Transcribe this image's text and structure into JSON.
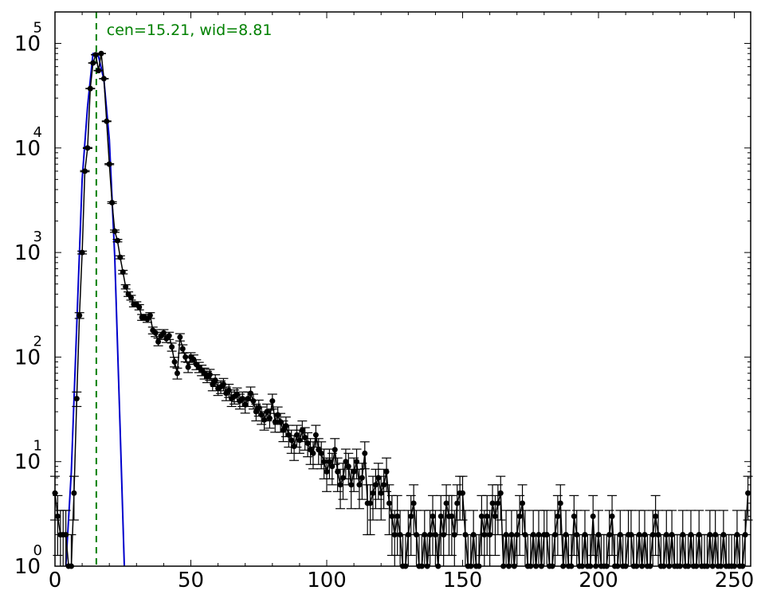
{
  "chart_data": {
    "type": "scatter",
    "title": "",
    "xlabel": "",
    "ylabel": "",
    "xlim": [
      0,
      256
    ],
    "ylim": [
      1,
      200000
    ],
    "yscale": "log",
    "grid": false,
    "x_ticks": [
      0,
      50,
      100,
      150,
      200,
      250
    ],
    "x_tick_labels": [
      "0",
      "50",
      "100",
      "150",
      "200",
      "250"
    ],
    "y_ticks": [
      1,
      10,
      100,
      1000,
      10000,
      100000
    ],
    "y_tick_base": [
      "10",
      "10",
      "10",
      "10",
      "10",
      "10"
    ],
    "y_tick_exponents": [
      "0",
      "1",
      "2",
      "3",
      "4",
      "5"
    ],
    "annotation": {
      "text": "cen=15.21, wid=8.81",
      "x": 19,
      "color": "#008000"
    },
    "center_line": {
      "x": 15.21,
      "color": "#008000",
      "style": "dashed"
    },
    "series": [
      {
        "kind": "errorbar-points",
        "color": "#000000",
        "points": [
          [
            0,
            5
          ],
          [
            1,
            3
          ],
          [
            2,
            2
          ],
          [
            3,
            2
          ],
          [
            4,
            2
          ],
          [
            5,
            0
          ],
          [
            6,
            1
          ],
          [
            7,
            5
          ],
          [
            8,
            40
          ],
          [
            9,
            250
          ],
          [
            10,
            1000
          ],
          [
            11,
            6000
          ],
          [
            12,
            10000
          ],
          [
            13,
            37000
          ],
          [
            14,
            65000
          ],
          [
            15,
            78000
          ],
          [
            16,
            55000
          ],
          [
            17,
            80000
          ],
          [
            18,
            46000
          ],
          [
            19,
            18000
          ],
          [
            20,
            7000
          ],
          [
            21,
            3000
          ],
          [
            22,
            1600
          ],
          [
            23,
            1300
          ],
          [
            24,
            900
          ],
          [
            25,
            650
          ],
          [
            26,
            470
          ],
          [
            27,
            400
          ],
          [
            28,
            370
          ],
          [
            29,
            320
          ],
          [
            30,
            320
          ],
          [
            31,
            300
          ],
          [
            32,
            240
          ],
          [
            33,
            240
          ],
          [
            34,
            230
          ],
          [
            35,
            250
          ],
          [
            36,
            180
          ],
          [
            37,
            170
          ],
          [
            38,
            140
          ],
          [
            39,
            160
          ],
          [
            40,
            170
          ],
          [
            41,
            150
          ],
          [
            42,
            160
          ],
          [
            43,
            125
          ],
          [
            44,
            90
          ],
          [
            45,
            70
          ],
          [
            46,
            155
          ],
          [
            47,
            120
          ],
          [
            48,
            100
          ],
          [
            49,
            80
          ],
          [
            50,
            100
          ],
          [
            51,
            95
          ],
          [
            52,
            85
          ],
          [
            53,
            80
          ],
          [
            54,
            75
          ],
          [
            55,
            70
          ],
          [
            56,
            65
          ],
          [
            57,
            68
          ],
          [
            58,
            55
          ],
          [
            59,
            60
          ],
          [
            60,
            50
          ],
          [
            61,
            52
          ],
          [
            62,
            55
          ],
          [
            63,
            45
          ],
          [
            64,
            48
          ],
          [
            65,
            40
          ],
          [
            66,
            42
          ],
          [
            67,
            44
          ],
          [
            68,
            38
          ],
          [
            69,
            40
          ],
          [
            70,
            35
          ],
          [
            71,
            40
          ],
          [
            72,
            45
          ],
          [
            73,
            38
          ],
          [
            74,
            30
          ],
          [
            75,
            33
          ],
          [
            76,
            28
          ],
          [
            77,
            25
          ],
          [
            78,
            30
          ],
          [
            79,
            26
          ],
          [
            80,
            38
          ],
          [
            81,
            24
          ],
          [
            82,
            28
          ],
          [
            83,
            24
          ],
          [
            84,
            20
          ],
          [
            85,
            22
          ],
          [
            86,
            18
          ],
          [
            87,
            16
          ],
          [
            88,
            14
          ],
          [
            89,
            18
          ],
          [
            90,
            16
          ],
          [
            91,
            20
          ],
          [
            92,
            17
          ],
          [
            93,
            15
          ],
          [
            94,
            13
          ],
          [
            95,
            12
          ],
          [
            96,
            18
          ],
          [
            97,
            13
          ],
          [
            98,
            12
          ],
          [
            99,
            10
          ],
          [
            100,
            8
          ],
          [
            101,
            10
          ],
          [
            102,
            9
          ],
          [
            103,
            13
          ],
          [
            104,
            8
          ],
          [
            105,
            6
          ],
          [
            106,
            7
          ],
          [
            107,
            10
          ],
          [
            108,
            9
          ],
          [
            109,
            6
          ],
          [
            110,
            8
          ],
          [
            111,
            10
          ],
          [
            112,
            6
          ],
          [
            113,
            7
          ],
          [
            114,
            12
          ],
          [
            115,
            4
          ],
          [
            116,
            4
          ],
          [
            117,
            5
          ],
          [
            118,
            6
          ],
          [
            119,
            7
          ],
          [
            120,
            5
          ],
          [
            121,
            6
          ],
          [
            122,
            8
          ],
          [
            123,
            4
          ],
          [
            124,
            3
          ],
          [
            125,
            2
          ],
          [
            126,
            3
          ],
          [
            127,
            2
          ],
          [
            128,
            1
          ],
          [
            129,
            1
          ],
          [
            130,
            2
          ],
          [
            131,
            3
          ],
          [
            132,
            4
          ],
          [
            133,
            2
          ],
          [
            134,
            1
          ],
          [
            135,
            1
          ],
          [
            136,
            2
          ],
          [
            137,
            1
          ],
          [
            138,
            2
          ],
          [
            139,
            3
          ],
          [
            140,
            2
          ],
          [
            141,
            1
          ],
          [
            142,
            3
          ],
          [
            143,
            2
          ],
          [
            144,
            4
          ],
          [
            145,
            3
          ],
          [
            146,
            3
          ],
          [
            147,
            2
          ],
          [
            148,
            4
          ],
          [
            149,
            5
          ],
          [
            150,
            5
          ],
          [
            151,
            2
          ],
          [
            152,
            1
          ],
          [
            153,
            1
          ],
          [
            154,
            2
          ],
          [
            155,
            1
          ],
          [
            156,
            1
          ],
          [
            157,
            3
          ],
          [
            158,
            2
          ],
          [
            159,
            3
          ],
          [
            160,
            2
          ],
          [
            161,
            4
          ],
          [
            162,
            3
          ],
          [
            163,
            4
          ],
          [
            164,
            5
          ],
          [
            165,
            1
          ],
          [
            166,
            2
          ],
          [
            167,
            1
          ],
          [
            168,
            2
          ],
          [
            169,
            1
          ],
          [
            170,
            2
          ],
          [
            171,
            3
          ],
          [
            172,
            4
          ],
          [
            173,
            2
          ],
          [
            174,
            1
          ],
          [
            175,
            1
          ],
          [
            176,
            2
          ],
          [
            177,
            1
          ],
          [
            178,
            2
          ],
          [
            179,
            1
          ],
          [
            180,
            2
          ],
          [
            181,
            2
          ],
          [
            182,
            1
          ],
          [
            183,
            1
          ],
          [
            184,
            2
          ],
          [
            185,
            3
          ],
          [
            186,
            4
          ],
          [
            187,
            1
          ],
          [
            188,
            2
          ],
          [
            189,
            1
          ],
          [
            190,
            1
          ],
          [
            191,
            3
          ],
          [
            192,
            2
          ],
          [
            193,
            1
          ],
          [
            194,
            1
          ],
          [
            195,
            2
          ],
          [
            196,
            1
          ],
          [
            197,
            1
          ],
          [
            198,
            3
          ],
          [
            199,
            1
          ],
          [
            200,
            2
          ],
          [
            201,
            1
          ],
          [
            202,
            1
          ],
          [
            203,
            1
          ],
          [
            204,
            2
          ],
          [
            205,
            3
          ],
          [
            206,
            1
          ],
          [
            207,
            1
          ],
          [
            208,
            2
          ],
          [
            209,
            1
          ],
          [
            210,
            1
          ],
          [
            211,
            2
          ],
          [
            212,
            2
          ],
          [
            213,
            1
          ],
          [
            214,
            1
          ],
          [
            215,
            2
          ],
          [
            216,
            1
          ],
          [
            217,
            2
          ],
          [
            218,
            1
          ],
          [
            219,
            1
          ],
          [
            220,
            2
          ],
          [
            221,
            3
          ],
          [
            222,
            2
          ],
          [
            223,
            1
          ],
          [
            224,
            1
          ],
          [
            225,
            2
          ],
          [
            226,
            1
          ],
          [
            227,
            2
          ],
          [
            228,
            1
          ],
          [
            229,
            1
          ],
          [
            230,
            1
          ],
          [
            231,
            2
          ],
          [
            232,
            1
          ],
          [
            233,
            1
          ],
          [
            234,
            2
          ],
          [
            235,
            1
          ],
          [
            236,
            1
          ],
          [
            237,
            2
          ],
          [
            238,
            1
          ],
          [
            239,
            1
          ],
          [
            240,
            1
          ],
          [
            241,
            2
          ],
          [
            242,
            1
          ],
          [
            243,
            2
          ],
          [
            244,
            1
          ],
          [
            245,
            1
          ],
          [
            246,
            2
          ],
          [
            247,
            1
          ],
          [
            248,
            1
          ],
          [
            249,
            1
          ],
          [
            250,
            1
          ],
          [
            251,
            2
          ],
          [
            252,
            1
          ],
          [
            253,
            1
          ],
          [
            254,
            2
          ],
          [
            255,
            5
          ]
        ]
      },
      {
        "kind": "gaussian-fit-line",
        "color": "#0000cc",
        "x": [
          4,
          6,
          8,
          10,
          12,
          14,
          15,
          16,
          18,
          20,
          22,
          24,
          25.5
        ],
        "y": [
          1,
          8,
          200,
          5000,
          25000,
          80000,
          80000,
          75000,
          45000,
          12000,
          900,
          20,
          1
        ]
      }
    ]
  }
}
